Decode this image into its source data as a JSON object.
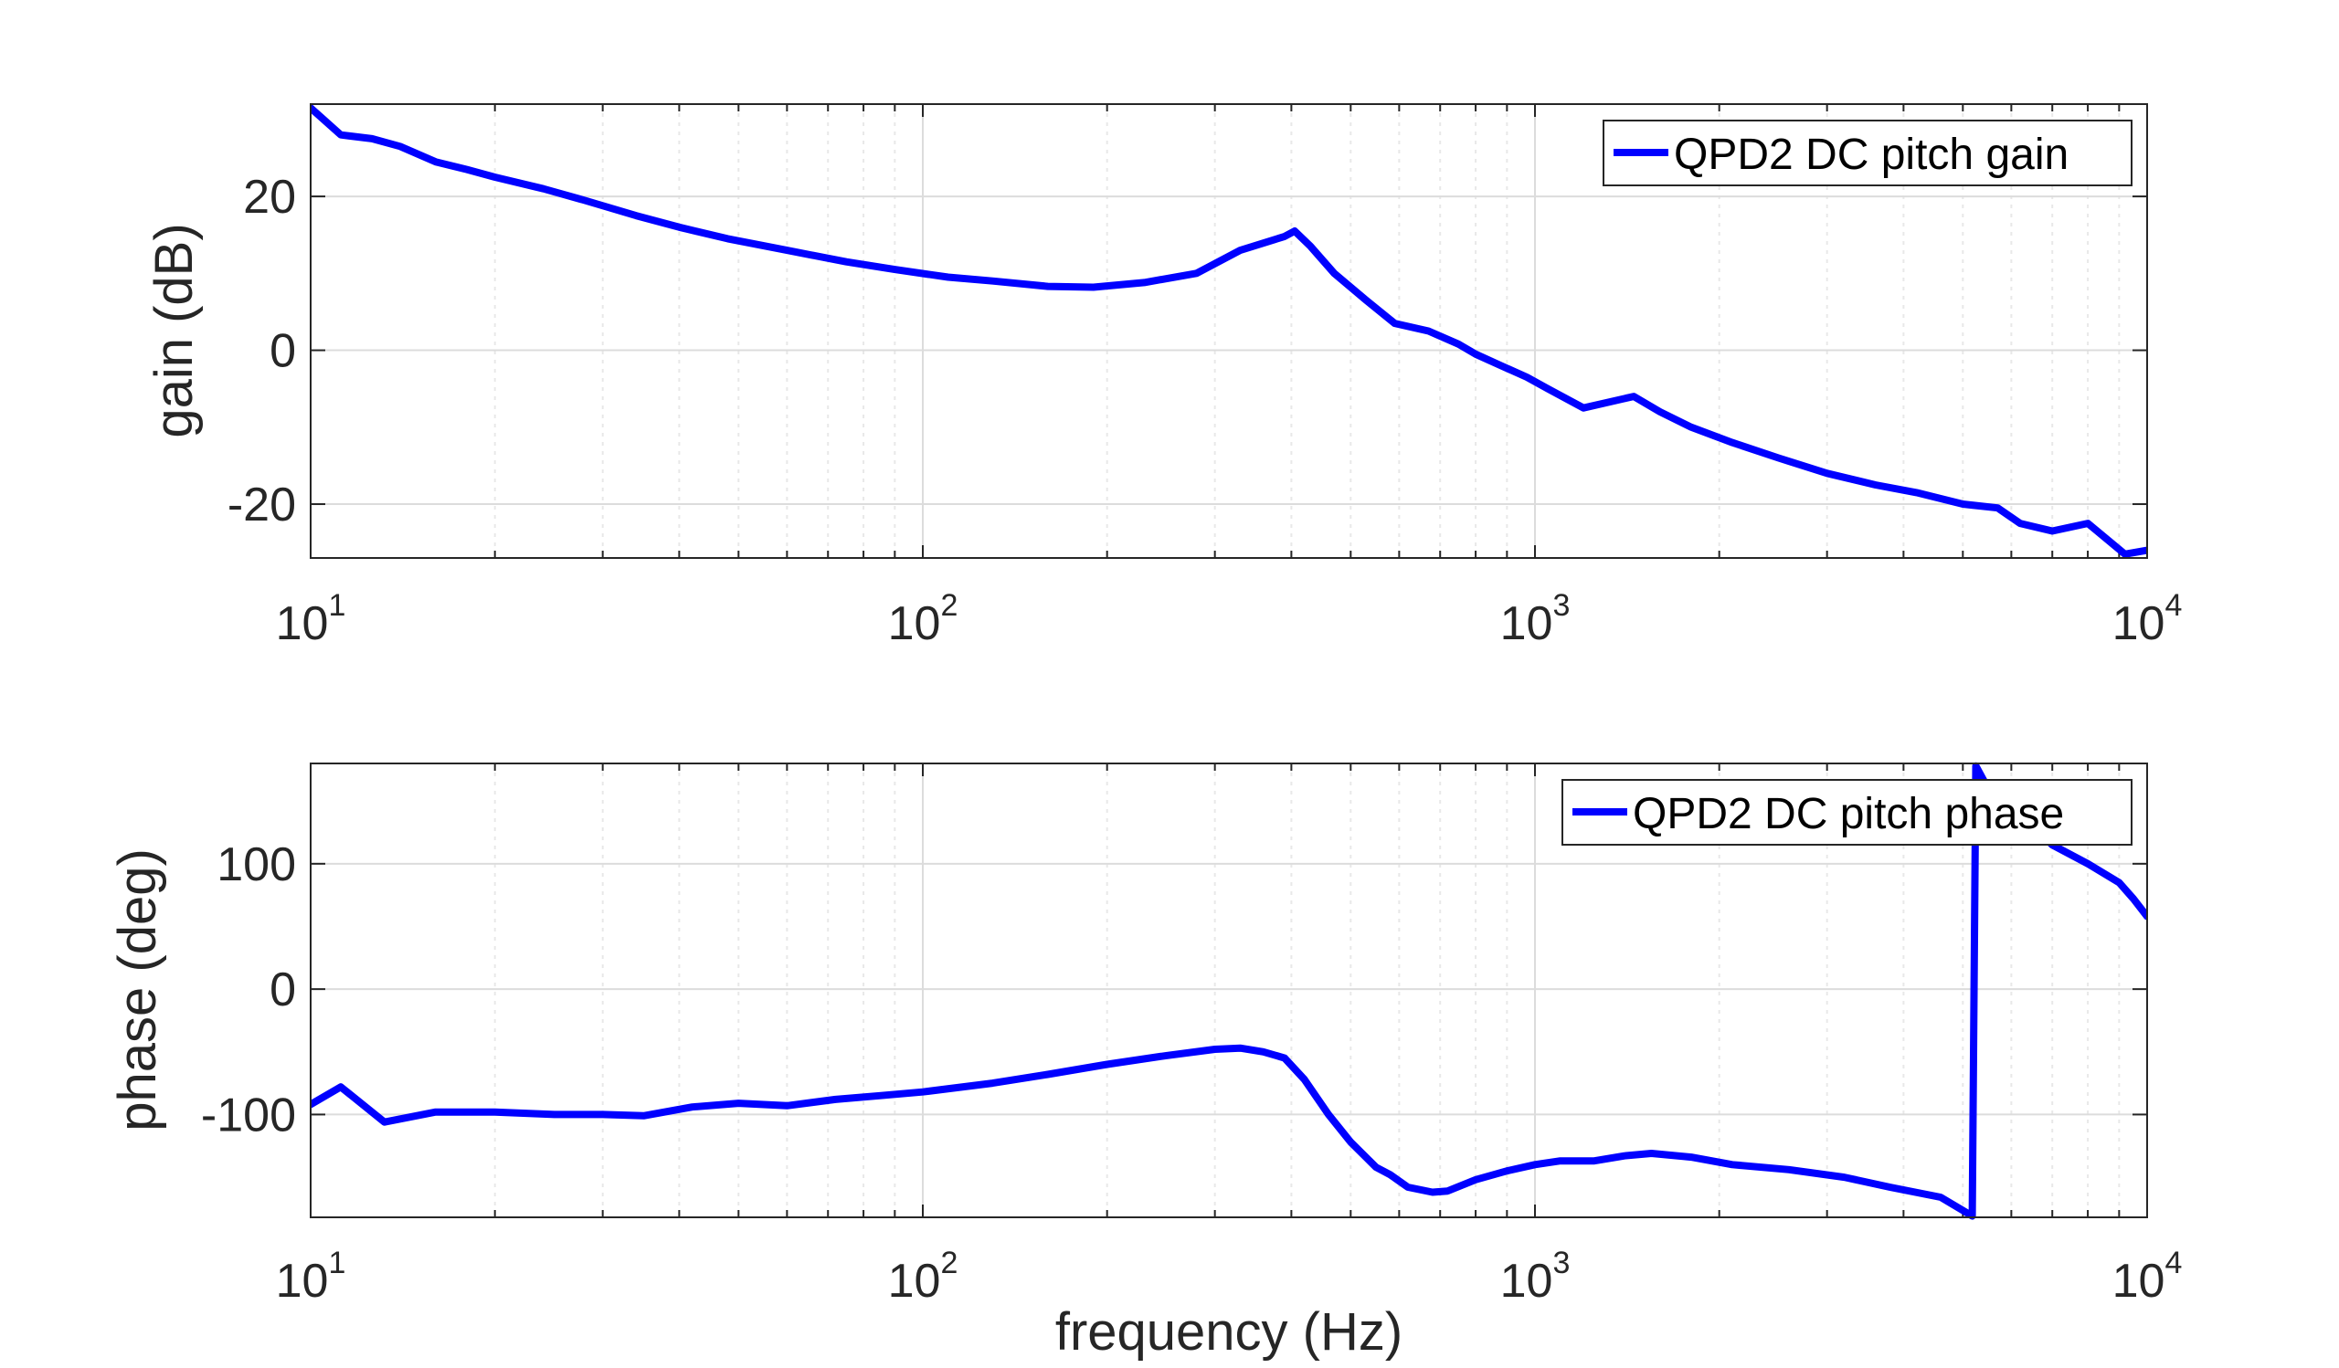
{
  "figure": {
    "background": "#ffffff",
    "line_color": "#0000ff"
  },
  "chart_data": [
    {
      "type": "line",
      "id": "gain",
      "xlabel": "",
      "ylabel": "gain (dB)",
      "xscale": "log",
      "xlim": [
        10,
        10000
      ],
      "ylim": [
        -27,
        32
      ],
      "yticks": [
        -20,
        0,
        20
      ],
      "ytick_labels": [
        "-20",
        "0",
        "20"
      ],
      "xtick_labels": [
        {
          "base": "10",
          "exp": "1"
        },
        {
          "base": "10",
          "exp": "2"
        },
        {
          "base": "10",
          "exp": "3"
        },
        {
          "base": "10",
          "exp": "4"
        }
      ],
      "grid": true,
      "legend_position": "top-right",
      "series": [
        {
          "name": "QPD2 DC pitch gain",
          "color": "#0000ff",
          "x": [
            10,
            11.2,
            12.6,
            14,
            16,
            18,
            20,
            24,
            28,
            34,
            40,
            48,
            60,
            75,
            90,
            110,
            130,
            160,
            190,
            230,
            280,
            330,
            390,
            405,
            430,
            470,
            530,
            590,
            670,
            750,
            800,
            880,
            970,
            1050,
            1200,
            1450,
            1600,
            1800,
            2100,
            2500,
            3000,
            3600,
            4200,
            5000,
            5700,
            6200,
            7000,
            8000,
            9200,
            10000
          ],
          "y": [
            31.5,
            28,
            27.5,
            26.5,
            24.5,
            23.5,
            22.5,
            21,
            19.5,
            17.5,
            16,
            14.5,
            13,
            11.5,
            10.5,
            9.5,
            9,
            8.3,
            8.2,
            8.8,
            10,
            13,
            14.8,
            15.5,
            13.5,
            10,
            6.5,
            3.5,
            2.5,
            0.8,
            -0.5,
            -2,
            -3.5,
            -5,
            -7.5,
            -6,
            -8,
            -10,
            -12,
            -14,
            -16,
            -17.5,
            -18.5,
            -20,
            -20.5,
            -22.5,
            -23.5,
            -22.5,
            -26.5,
            -26
          ]
        }
      ]
    },
    {
      "type": "line",
      "id": "phase",
      "xlabel": "frequency (Hz)",
      "ylabel": "phase (deg)",
      "xscale": "log",
      "xlim": [
        10,
        10000
      ],
      "ylim": [
        -182,
        180
      ],
      "yticks": [
        -100,
        0,
        100
      ],
      "ytick_labels": [
        "-100",
        "0",
        "100"
      ],
      "xtick_labels": [
        {
          "base": "10",
          "exp": "1"
        },
        {
          "base": "10",
          "exp": "2"
        },
        {
          "base": "10",
          "exp": "3"
        },
        {
          "base": "10",
          "exp": "4"
        }
      ],
      "grid": true,
      "legend_position": "top-right",
      "series": [
        {
          "name": "QPD2 DC pitch phase",
          "color": "#0000ff",
          "x": [
            10,
            11.2,
            13.2,
            16,
            20,
            25,
            30,
            35,
            42,
            50,
            60,
            72,
            85,
            100,
            130,
            160,
            200,
            250,
            300,
            330,
            360,
            390,
            420,
            460,
            500,
            550,
            580,
            620,
            680,
            720,
            800,
            900,
            1000,
            1100,
            1250,
            1400,
            1550,
            1800,
            2100,
            2600,
            3200,
            3800,
            4600,
            5180,
            5250,
            5500,
            6200,
            7000,
            8000,
            9000,
            9500,
            10000
          ],
          "y": [
            -92,
            -78,
            -106,
            -98,
            -98,
            -100,
            -100,
            -101,
            -94,
            -91,
            -93,
            -88,
            -85,
            -82,
            -75,
            -68,
            -60,
            -53,
            -48,
            -47,
            -50,
            -55,
            -72,
            -100,
            -122,
            -142,
            -148,
            -158,
            -162,
            -161,
            -152,
            -145,
            -140,
            -137,
            -137,
            -133,
            -131,
            -134,
            -140,
            -144,
            -150,
            -158,
            -166,
            -181,
            178,
            160,
            140,
            115,
            100,
            85,
            72,
            58
          ]
        }
      ]
    }
  ]
}
